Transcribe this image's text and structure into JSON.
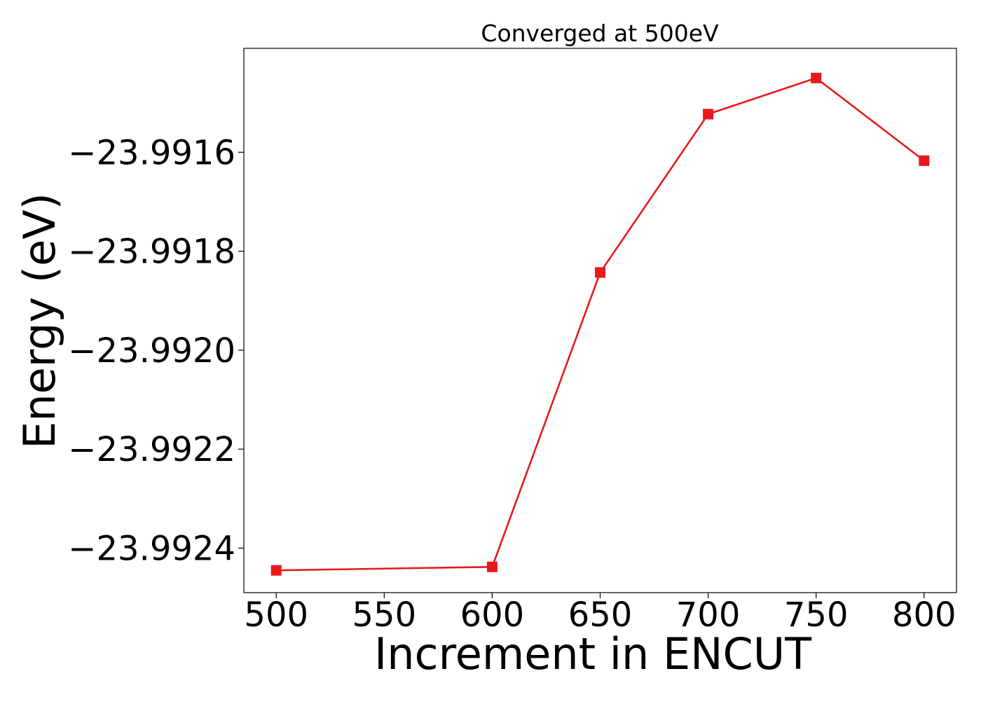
{
  "chart_data": {
    "type": "line",
    "title": "Converged at 500eV",
    "xlabel": "Increment in ENCUT",
    "ylabel": "Energy (eV)",
    "xlim": [
      485,
      815
    ],
    "ylim": [
      -23.99249,
      -23.99139
    ],
    "x_ticks": [
      500,
      550,
      600,
      650,
      700,
      750,
      800
    ],
    "x_tick_labels": [
      "500",
      "550",
      "600",
      "650",
      "700",
      "750",
      "800"
    ],
    "y_ticks": [
      -23.9916,
      -23.9918,
      -23.992,
      -23.9922,
      -23.9924
    ],
    "y_tick_labels": [
      "−23.9916",
      "−23.9918",
      "−23.9920",
      "−23.9922",
      "−23.9924"
    ],
    "grid": false,
    "series": [
      {
        "x": [
          500,
          600,
          650,
          700,
          750,
          800
        ],
        "y": [
          -23.992445,
          -23.992438,
          -23.991843,
          -23.991523,
          -23.99145,
          -23.991617
        ],
        "color": "#e8191d",
        "marker": "square"
      }
    ]
  }
}
